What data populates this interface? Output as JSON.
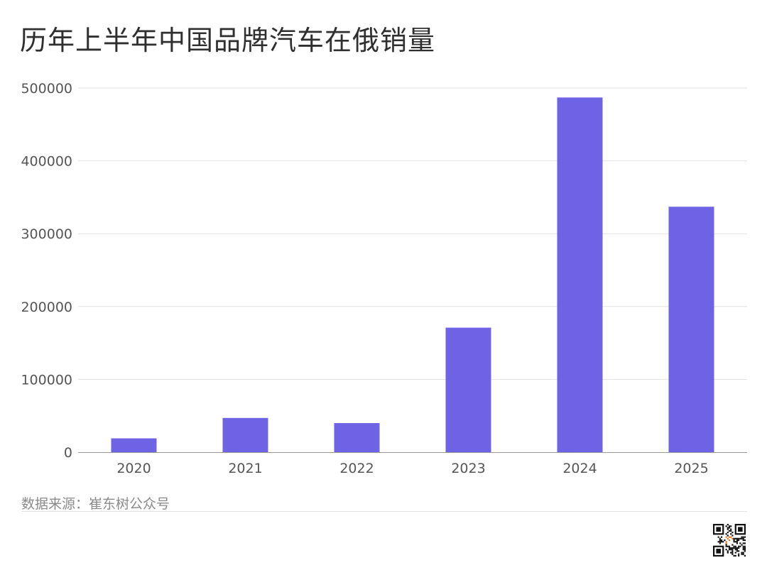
{
  "title": "历年上半年中国品牌汽车在俄销量",
  "source": "数据来源：崔东树公众号",
  "colors": {
    "bar": "#6e62e5",
    "grid": "#e2e2e2",
    "axis": "#9a9a9a",
    "tick_text": "#555555",
    "qr_accent": "#e07b2a"
  },
  "chart_data": {
    "type": "bar",
    "title": "历年上半年中国品牌汽车在俄销量",
    "xlabel": "",
    "ylabel": "",
    "categories": [
      "2020",
      "2021",
      "2022",
      "2023",
      "2024",
      "2025"
    ],
    "values": [
      19000,
      47000,
      40000,
      171000,
      487000,
      337000
    ],
    "ylim": [
      0,
      500000
    ],
    "yticks": [
      "0",
      "100000",
      "200000",
      "300000",
      "400000",
      "500000"
    ],
    "grid": true,
    "legend": "none"
  },
  "qr_icon": "qr-code-icon"
}
